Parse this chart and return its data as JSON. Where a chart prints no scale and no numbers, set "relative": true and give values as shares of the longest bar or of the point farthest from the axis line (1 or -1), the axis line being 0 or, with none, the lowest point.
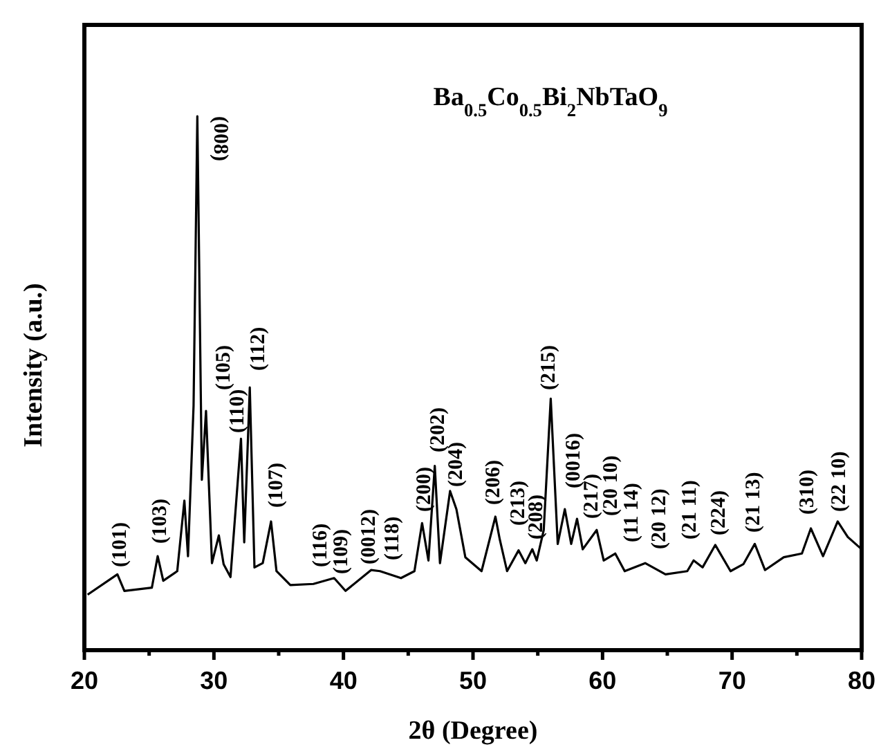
{
  "chart_data": {
    "type": "line",
    "title": "Ba$_{0.5}$Co$_{0.5}$Bi$_{2}$NbTaO$_{9}$",
    "xlabel": "2θ (Degree)",
    "ylabel": "Intensity (a.u.)",
    "relative": true,
    "grid": false,
    "marker": "none",
    "line_style": "solid",
    "xlim": [
      20,
      80
    ],
    "xticks": [
      20,
      {
        "value": 25,
        "label": null
      },
      30,
      {
        "value": 35,
        "label": null
      },
      40,
      {
        "value": 45,
        "label": null
      },
      50,
      {
        "value": 55,
        "label": null
      },
      60,
      {
        "value": 65,
        "label": null
      },
      70,
      {
        "value": 75,
        "label": null
      },
      80
    ],
    "series": [
      {
        "color": "#000000",
        "x": [
          20.25,
          22.55,
          23.09,
          25.21,
          25.66,
          26.09,
          27.17,
          27.72,
          28.0,
          28.43,
          28.72,
          29.07,
          29.39,
          29.85,
          30.38,
          30.75,
          31.28,
          32.09,
          32.34,
          32.77,
          33.13,
          33.77,
          34.41,
          34.83,
          35.9,
          37.68,
          39.28,
          40.16,
          42.13,
          42.82,
          44.44,
          45.48,
          46.07,
          46.56,
          47.05,
          47.45,
          48.23,
          48.72,
          49.41,
          50.66,
          51.73,
          52.07,
          52.63,
          53.52,
          54.04,
          54.58,
          54.92,
          55.46,
          56.0,
          56.54,
          57.09,
          57.58,
          58.03,
          58.47,
          59.55,
          60.09,
          60.98,
          61.71,
          63.29,
          64.86,
          66.54,
          67.03,
          67.72,
          68.7,
          69.88,
          70.87,
          71.75,
          72.54,
          73.99,
          75.39,
          76.08,
          77.02,
          78.15,
          78.93,
          80.0
        ],
        "values": [
          0.104,
          0.142,
          0.111,
          0.117,
          0.176,
          0.13,
          0.148,
          0.28,
          0.176,
          0.458,
          1.0,
          0.319,
          0.448,
          0.163,
          0.215,
          0.161,
          0.137,
          0.396,
          0.202,
          0.492,
          0.155,
          0.163,
          0.241,
          0.148,
          0.122,
          0.124,
          0.135,
          0.111,
          0.15,
          0.148,
          0.135,
          0.148,
          0.238,
          0.168,
          0.345,
          0.163,
          0.298,
          0.264,
          0.174,
          0.148,
          0.25,
          0.207,
          0.148,
          0.187,
          0.163,
          0.189,
          0.168,
          0.225,
          0.471,
          0.199,
          0.264,
          0.199,
          0.246,
          0.189,
          0.225,
          0.168,
          0.181,
          0.148,
          0.163,
          0.142,
          0.148,
          0.168,
          0.155,
          0.197,
          0.148,
          0.161,
          0.199,
          0.15,
          0.174,
          0.181,
          0.228,
          0.176,
          0.241,
          0.212,
          0.189
        ]
      }
    ],
    "annotations": [
      "(101)",
      "(103)",
      "(008)",
      "(105)",
      "(110)",
      "(112)",
      "(107)",
      "(116)",
      "(109)",
      "(0012)",
      "(118)",
      "(200)",
      "(202)",
      "(204)",
      "(206)",
      "(213)",
      "(208)",
      "(215)",
      "(0016)",
      "(217)",
      "(20 10)",
      "(11 14)",
      "(20 12)",
      "(21 11)",
      "(224)",
      "(21 13)",
      "(310)",
      "(22 10)"
    ]
  }
}
